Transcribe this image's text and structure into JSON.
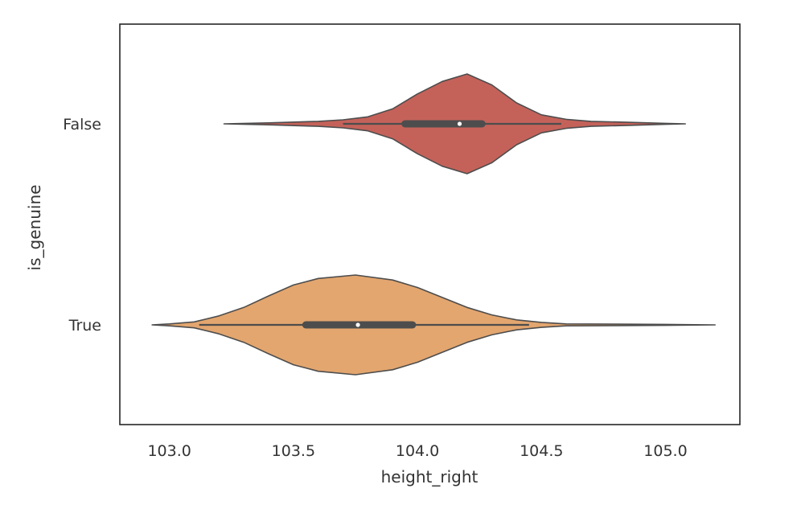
{
  "chart_data": {
    "type": "violin",
    "orientation": "horizontal",
    "xlabel": "height_right",
    "ylabel": "is_genuine",
    "xlim": [
      102.8,
      105.3
    ],
    "x_ticks": [
      103.0,
      103.5,
      104.0,
      104.5,
      105.0
    ],
    "x_tick_labels": [
      "103.0",
      "103.5",
      "104.0",
      "104.5",
      "105.0"
    ],
    "grid": false,
    "categories": [
      "False",
      "True"
    ],
    "series": [
      {
        "category": "False",
        "color": "#C4625A",
        "min": 103.22,
        "max": 105.08,
        "q1": 103.95,
        "median": 104.17,
        "q3": 104.26,
        "whisker_low": 103.7,
        "whisker_high": 104.58,
        "density": [
          [
            103.22,
            0.0
          ],
          [
            103.4,
            0.02
          ],
          [
            103.6,
            0.05
          ],
          [
            103.7,
            0.08
          ],
          [
            103.8,
            0.14
          ],
          [
            103.9,
            0.3
          ],
          [
            104.0,
            0.6
          ],
          [
            104.1,
            0.85
          ],
          [
            104.2,
            1.0
          ],
          [
            104.3,
            0.78
          ],
          [
            104.4,
            0.42
          ],
          [
            104.5,
            0.18
          ],
          [
            104.6,
            0.09
          ],
          [
            104.7,
            0.05
          ],
          [
            104.85,
            0.03
          ],
          [
            105.0,
            0.01
          ],
          [
            105.08,
            0.0
          ]
        ]
      },
      {
        "category": "True",
        "color": "#E3A66F",
        "min": 102.93,
        "max": 105.2,
        "q1": 103.55,
        "median": 103.76,
        "q3": 103.98,
        "whisker_low": 103.12,
        "whisker_high": 104.45,
        "density": [
          [
            102.93,
            0.0
          ],
          [
            103.0,
            0.02
          ],
          [
            103.1,
            0.06
          ],
          [
            103.2,
            0.18
          ],
          [
            103.3,
            0.35
          ],
          [
            103.4,
            0.58
          ],
          [
            103.5,
            0.8
          ],
          [
            103.6,
            0.93
          ],
          [
            103.75,
            1.0
          ],
          [
            103.9,
            0.9
          ],
          [
            104.0,
            0.75
          ],
          [
            104.1,
            0.55
          ],
          [
            104.2,
            0.35
          ],
          [
            104.3,
            0.2
          ],
          [
            104.4,
            0.1
          ],
          [
            104.5,
            0.05
          ],
          [
            104.6,
            0.02
          ],
          [
            104.8,
            0.015
          ],
          [
            105.0,
            0.01
          ],
          [
            105.2,
            0.0
          ]
        ]
      }
    ]
  }
}
